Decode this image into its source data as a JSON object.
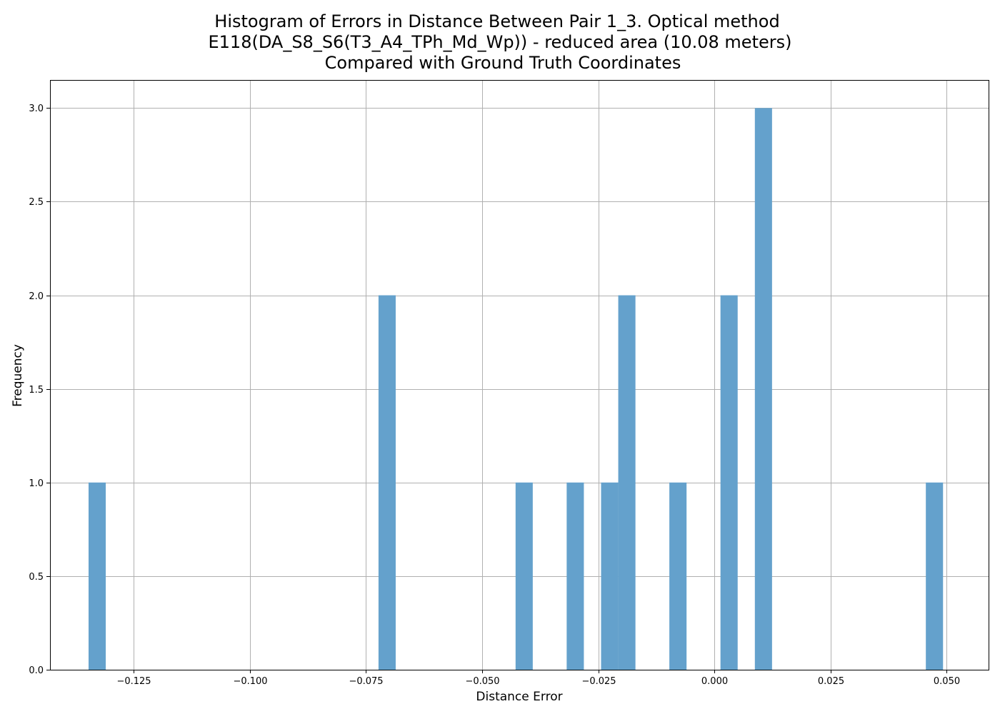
{
  "chart_data": {
    "type": "bar",
    "title": [
      "Histogram of Errors in Distance Between Pair 1_3. Optical method",
      "E118(DA_S8_S6(T3_A4_TPh_Md_Wp)) - reduced area (10.08 meters)",
      "Compared with Ground Truth Coordinates"
    ],
    "xlabel": "Distance Error",
    "ylabel": "Frequency",
    "xlim": [
      -0.143,
      0.059
    ],
    "ylim": [
      0,
      3.15
    ],
    "xticks": [
      -0.125,
      -0.1,
      -0.075,
      -0.05,
      -0.025,
      0.0,
      0.025,
      0.05
    ],
    "xtick_labels": [
      "−0.125",
      "−0.100",
      "−0.075",
      "−0.050",
      "−0.025",
      "0.000",
      "0.025",
      "0.050"
    ],
    "yticks": [
      0,
      0.5,
      1,
      1.5,
      2,
      2.5,
      3
    ],
    "ytick_labels": [
      "0.0",
      "0.5",
      "1.0",
      "1.5",
      "2.0",
      "2.5",
      "3.0"
    ],
    "grid": true,
    "bar_color": "#64a1cc",
    "bins": [
      {
        "x0": -0.1347,
        "x1": -0.131,
        "count": 1
      },
      {
        "x0": -0.0723,
        "x1": -0.0686,
        "count": 2
      },
      {
        "x0": -0.0428,
        "x1": -0.0391,
        "count": 1
      },
      {
        "x0": -0.0318,
        "x1": -0.0281,
        "count": 1
      },
      {
        "x0": -0.0244,
        "x1": -0.0207,
        "count": 1
      },
      {
        "x0": -0.0207,
        "x1": -0.017,
        "count": 2
      },
      {
        "x0": -0.0097,
        "x1": -0.006,
        "count": 1
      },
      {
        "x0": 0.0013,
        "x1": 0.005,
        "count": 2
      },
      {
        "x0": 0.0087,
        "x1": 0.0124,
        "count": 3
      },
      {
        "x0": 0.0455,
        "x1": 0.0492,
        "count": 1
      }
    ]
  }
}
